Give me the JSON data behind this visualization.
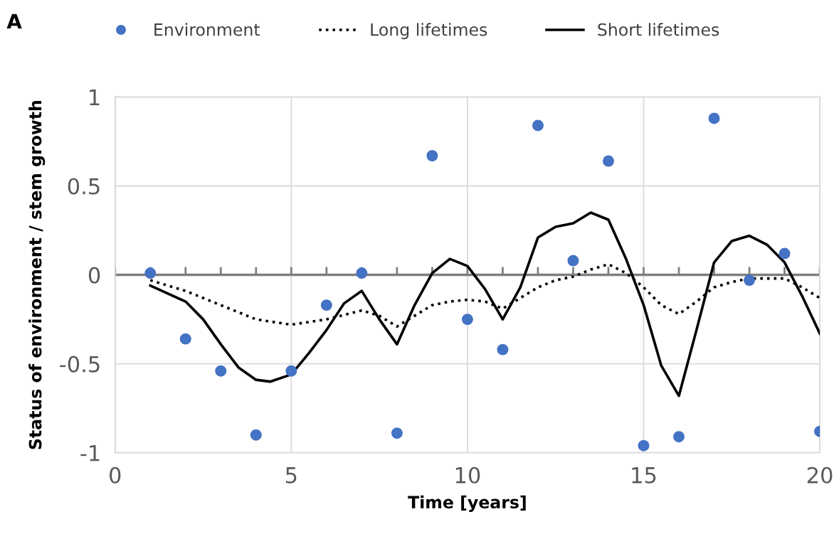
{
  "chart_data": {
    "type": "line",
    "xlabel": "Time [years]",
    "ylabel": "Status of environment / stem growth",
    "annotations": [
      "A"
    ],
    "xlim": [
      0,
      20
    ],
    "xticks": [
      0,
      5,
      10,
      15,
      20
    ],
    "ylim": [
      -1,
      1
    ],
    "yticks": [
      -1,
      -0.5,
      0,
      0.5,
      1
    ],
    "grid": true,
    "legend": "top",
    "ref_lines": [
      {
        "axis": "y",
        "value": 0,
        "color": "#7f7f7f"
      }
    ],
    "series": [
      {
        "name": "Environment",
        "type": "scatter",
        "color": "#4472c4",
        "marker": "circle",
        "x": [
          1,
          2,
          3,
          4,
          5,
          6,
          7,
          8,
          9,
          10,
          11,
          12,
          13,
          14,
          15,
          16,
          17,
          18,
          19,
          20
        ],
        "values": [
          0.01,
          -0.36,
          -0.54,
          -0.9,
          -0.54,
          -0.17,
          0.01,
          -0.89,
          0.67,
          -0.25,
          -0.42,
          0.84,
          0.08,
          0.64,
          -0.96,
          -0.91,
          0.88,
          -0.03,
          0.12,
          -0.88
        ]
      },
      {
        "name": "Long lifetimes",
        "color": "#000000",
        "line_style": "dotted",
        "x": [
          1,
          2,
          3,
          4,
          5,
          6,
          7,
          7.5,
          8,
          8.5,
          9,
          9.5,
          10,
          10.5,
          11,
          11.5,
          12,
          12.5,
          13,
          13.5,
          14,
          14.5,
          15,
          15.5,
          16,
          16.5,
          17,
          17.5,
          18,
          19,
          19.5,
          20
        ],
        "values": [
          -0.03,
          -0.09,
          -0.17,
          -0.25,
          -0.28,
          -0.25,
          -0.2,
          -0.23,
          -0.29,
          -0.23,
          -0.17,
          -0.15,
          -0.14,
          -0.15,
          -0.19,
          -0.13,
          -0.07,
          -0.03,
          -0.01,
          0.03,
          0.06,
          0.01,
          -0.07,
          -0.17,
          -0.22,
          -0.15,
          -0.07,
          -0.04,
          -0.02,
          -0.02,
          -0.07,
          -0.13
        ]
      },
      {
        "name": "Short lifetimes",
        "color": "#000000",
        "line_style": "solid",
        "x": [
          1,
          2,
          2.5,
          3,
          3.5,
          4,
          4.4,
          5,
          5.5,
          6,
          6.5,
          7,
          7.5,
          8,
          8.5,
          9,
          9.5,
          10,
          10.5,
          11,
          11.5,
          12,
          12.5,
          13,
          13.5,
          14,
          14.5,
          15,
          15.5,
          16,
          16.5,
          17,
          17.5,
          18,
          18.5,
          19,
          19.5,
          20
        ],
        "values": [
          -0.06,
          -0.15,
          -0.25,
          -0.39,
          -0.52,
          -0.59,
          -0.6,
          -0.56,
          -0.44,
          -0.31,
          -0.16,
          -0.09,
          -0.25,
          -0.39,
          -0.17,
          0.01,
          0.09,
          0.05,
          -0.08,
          -0.25,
          -0.07,
          0.21,
          0.27,
          0.29,
          0.35,
          0.31,
          0.09,
          -0.17,
          -0.51,
          -0.68,
          -0.31,
          0.07,
          0.19,
          0.22,
          0.17,
          0.07,
          -0.12,
          -0.33
        ]
      }
    ]
  }
}
